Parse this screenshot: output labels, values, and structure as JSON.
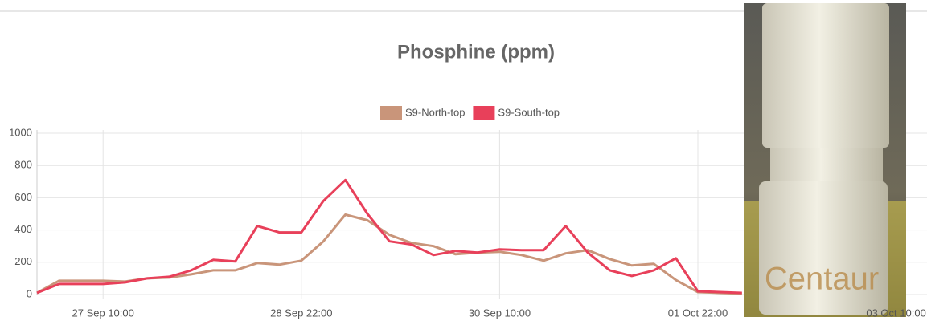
{
  "chart_data": {
    "type": "line",
    "title": "Phosphine (ppm)",
    "categories": [
      null,
      null,
      null,
      "27 Sep 10:00",
      null,
      null,
      null,
      null,
      null,
      null,
      null,
      null,
      "28 Sep 22:00",
      null,
      null,
      null,
      null,
      null,
      null,
      null,
      null,
      "30 Sep 10:00",
      null,
      null,
      null,
      null,
      null,
      null,
      null,
      null,
      "01 Oct 22:00",
      null,
      null,
      null,
      null,
      null,
      null,
      null,
      null,
      "03 Oct 10:00"
    ],
    "series": [
      {
        "name": "S9-North-top",
        "color": "#c9957a",
        "values": [
          10,
          85,
          85,
          85,
          80,
          100,
          105,
          125,
          150,
          150,
          195,
          185,
          210,
          330,
          495,
          460,
          370,
          320,
          300,
          250,
          260,
          265,
          245,
          210,
          255,
          275,
          220,
          180,
          190,
          90,
          15,
          10,
          5,
          null,
          null,
          null,
          null,
          null,
          null,
          null
        ]
      },
      {
        "name": "S9-South-top",
        "color": "#e8405a",
        "values": [
          10,
          65,
          65,
          65,
          75,
          100,
          110,
          150,
          215,
          205,
          425,
          385,
          385,
          580,
          710,
          500,
          330,
          310,
          245,
          270,
          260,
          280,
          275,
          275,
          425,
          260,
          150,
          115,
          150,
          225,
          20,
          15,
          10,
          null,
          null,
          null,
          null,
          null,
          null,
          null
        ]
      }
    ],
    "ylim": [
      0,
      1000
    ],
    "yticks": [
      0,
      200,
      400,
      600,
      800,
      1000
    ],
    "grid": true,
    "legend": "top"
  },
  "photo": {
    "label": "Centaur"
  }
}
